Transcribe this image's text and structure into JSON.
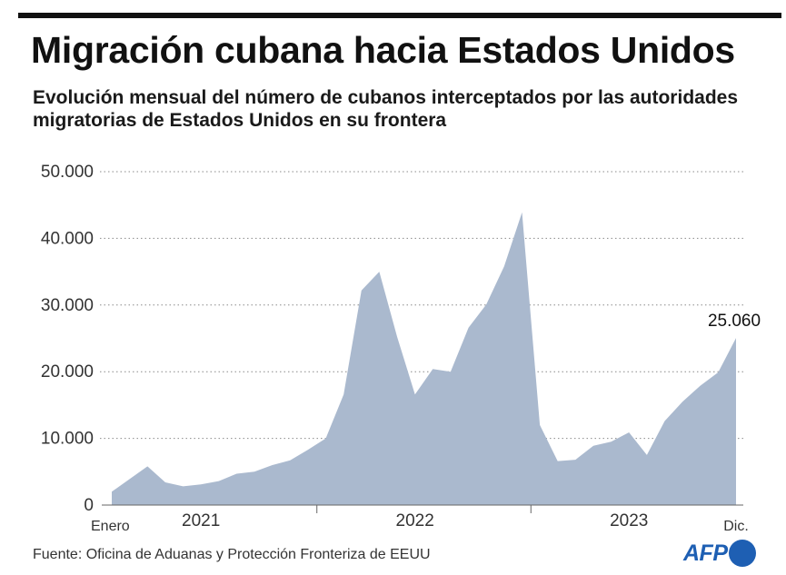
{
  "header": {
    "title": "Migración cubana hacia Estados Unidos",
    "subtitle": "Evolución mensual del número de cubanos interceptados por las autoridades migratorias de Estados Unidos en su frontera"
  },
  "footer": {
    "source": "Fuente: Oficina de Aduanas y Protección Fronteriza de EEUU",
    "logo_text": "AFP"
  },
  "colors": {
    "area": "#aab9ce",
    "text": "#1a1a1a",
    "grid": "#8a8a8a",
    "brand": "#1e5fb3"
  },
  "chart_data": {
    "type": "area",
    "title": "Migración cubana hacia Estados Unidos",
    "ylim": [
      0,
      50000
    ],
    "y_ticks": [
      {
        "value": 0,
        "label": "0"
      },
      {
        "value": 10000,
        "label": "10.000"
      },
      {
        "value": 20000,
        "label": "20.000"
      },
      {
        "value": 30000,
        "label": "30.000"
      },
      {
        "value": 40000,
        "label": "40.000"
      },
      {
        "value": 50000,
        "label": "50.000"
      }
    ],
    "grid": "horizontal dotted",
    "x": [
      "2021-01",
      "2021-02",
      "2021-03",
      "2021-04",
      "2021-05",
      "2021-06",
      "2021-07",
      "2021-08",
      "2021-09",
      "2021-10",
      "2021-11",
      "2021-12",
      "2022-01",
      "2022-02",
      "2022-03",
      "2022-04",
      "2022-05",
      "2022-06",
      "2022-07",
      "2022-08",
      "2022-09",
      "2022-10",
      "2022-11",
      "2022-12",
      "2023-01",
      "2023-02",
      "2023-03",
      "2023-04",
      "2023-05",
      "2023-06",
      "2023-07",
      "2023-08",
      "2023-09",
      "2023-10",
      "2023-11",
      "2023-12"
    ],
    "values": [
      2000,
      3900,
      5800,
      3400,
      2800,
      3100,
      3600,
      4700,
      5000,
      6000,
      6700,
      8300,
      10000,
      16600,
      32200,
      35000,
      25200,
      16600,
      20400,
      20000,
      26600,
      30100,
      35800,
      43900,
      12000,
      6600,
      6800,
      8900,
      9500,
      10900,
      7500,
      12600,
      15500,
      17900,
      19900,
      25060
    ],
    "x_labels": [
      {
        "label": "Enero",
        "at": "2021-01"
      },
      {
        "label": "2021",
        "at": "2021-06"
      },
      {
        "label": "2022",
        "at": "2022-06"
      },
      {
        "label": "2023",
        "at": "2023-06"
      },
      {
        "label": "Dic.",
        "at": "2023-12"
      }
    ],
    "year_separators": [
      "2022-01",
      "2023-01"
    ],
    "annotations": [
      {
        "at": "2023-12",
        "value": 25060,
        "label": "25.060"
      }
    ]
  }
}
